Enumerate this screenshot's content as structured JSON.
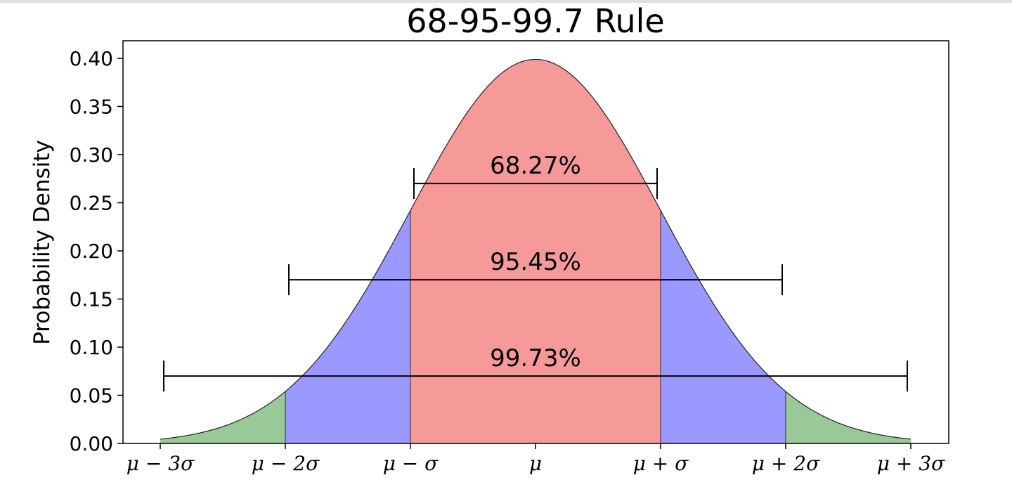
{
  "chart_data": {
    "type": "area",
    "title": "68-95-99.7 Rule",
    "xlabel": "",
    "ylabel": "Probability Density",
    "xlim": [
      -3,
      3
    ],
    "ylim": [
      0,
      0.4
    ],
    "x_ticks": [
      {
        "x": -3,
        "label": "μ − 3σ"
      },
      {
        "x": -2,
        "label": "μ − 2σ"
      },
      {
        "x": -1,
        "label": "μ − σ"
      },
      {
        "x": 0,
        "label": "μ"
      },
      {
        "x": 1,
        "label": "μ + σ"
      },
      {
        "x": 2,
        "label": "μ + 2σ"
      },
      {
        "x": 3,
        "label": "μ + 3σ"
      }
    ],
    "y_ticks": [
      "0.00",
      "0.05",
      "0.10",
      "0.15",
      "0.20",
      "0.25",
      "0.30",
      "0.35",
      "0.40"
    ],
    "curve": "standard normal density",
    "regions": [
      {
        "from": -3,
        "to": -2,
        "color": "#99c999"
      },
      {
        "from": -2,
        "to": -1,
        "color": "#9999ff"
      },
      {
        "from": -1,
        "to": 1,
        "color": "#f59999"
      },
      {
        "from": 1,
        "to": 2,
        "color": "#9999ff"
      },
      {
        "from": 2,
        "to": 3,
        "color": "#99c999"
      }
    ],
    "intervals": [
      {
        "from": -1,
        "to": 1,
        "y": 0.27,
        "label": "68.27%"
      },
      {
        "from": -2,
        "to": 2,
        "y": 0.17,
        "label": "95.45%"
      },
      {
        "from": -3,
        "to": 3,
        "y": 0.07,
        "label": "99.73%"
      }
    ],
    "grid": false
  }
}
